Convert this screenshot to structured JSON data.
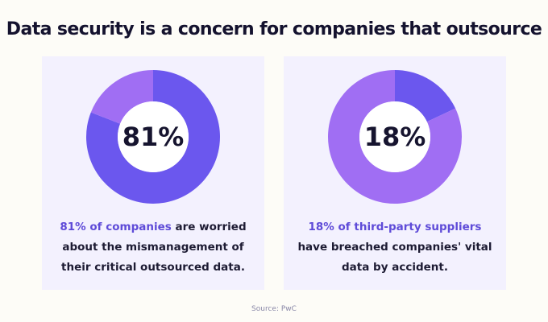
{
  "title": "Data security is a concern for companies that outsource",
  "colors": {
    "background": "#fdfcf7",
    "card": "#f3f1fe",
    "dark_purple": "#6b57ee",
    "light_purple": "#a06ef3",
    "highlight_text": "#5e4bd8",
    "title_text": "#14122e"
  },
  "chart_data": [
    {
      "type": "pie",
      "donut": true,
      "center_label": "81%",
      "slices": [
        {
          "value": 81,
          "color": "#6b57ee"
        },
        {
          "value": 19,
          "color": "#a06ef3"
        }
      ],
      "caption": {
        "highlight": "81% of companies",
        "line1_rest": " are worried",
        "line2": "about the mismanagement of",
        "line3": "their critical outsourced data."
      }
    },
    {
      "type": "pie",
      "donut": true,
      "center_label": "18%",
      "slices": [
        {
          "value": 18,
          "color": "#6b57ee"
        },
        {
          "value": 82,
          "color": "#a06ef3"
        }
      ],
      "caption": {
        "highlight": "18% of third-party suppliers",
        "line2": "have breached companies' vital",
        "line3": "data by accident."
      }
    }
  ],
  "source": "Source: PwC"
}
